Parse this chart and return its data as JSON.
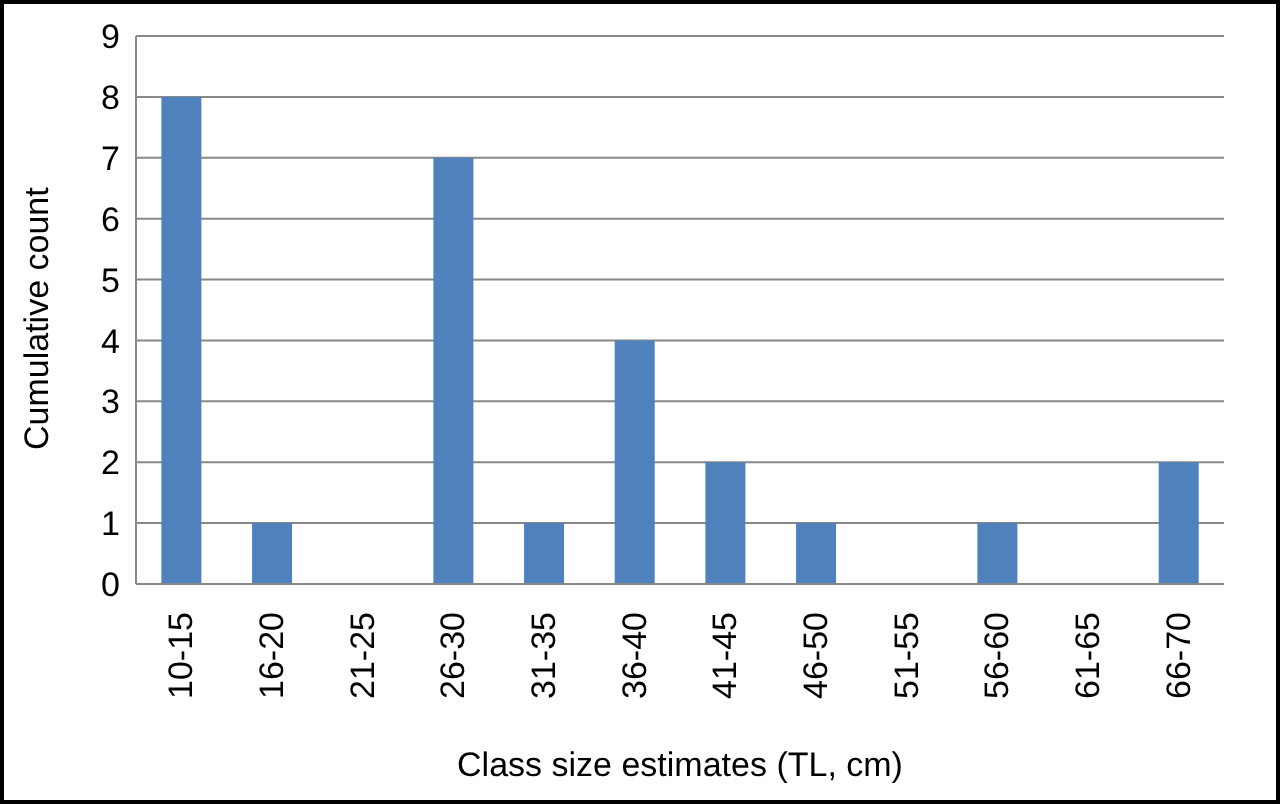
{
  "chart_data": {
    "type": "bar",
    "xlabel": "Class size estimates (TL, cm)",
    "ylabel": "Cumulative count",
    "categories": [
      "10-15",
      "16-20",
      "21-25",
      "26-30",
      "31-35",
      "36-40",
      "41-45",
      "46-50",
      "51-55",
      "56-60",
      "61-65",
      "66-70"
    ],
    "values": [
      8,
      1,
      0,
      7,
      1,
      4,
      2,
      1,
      0,
      1,
      0,
      2
    ],
    "color": "#4f81bd",
    "ylim": [
      0,
      9
    ],
    "yticks": [
      0,
      1,
      2,
      3,
      4,
      5,
      6,
      7,
      8,
      9
    ],
    "grid": "y"
  }
}
